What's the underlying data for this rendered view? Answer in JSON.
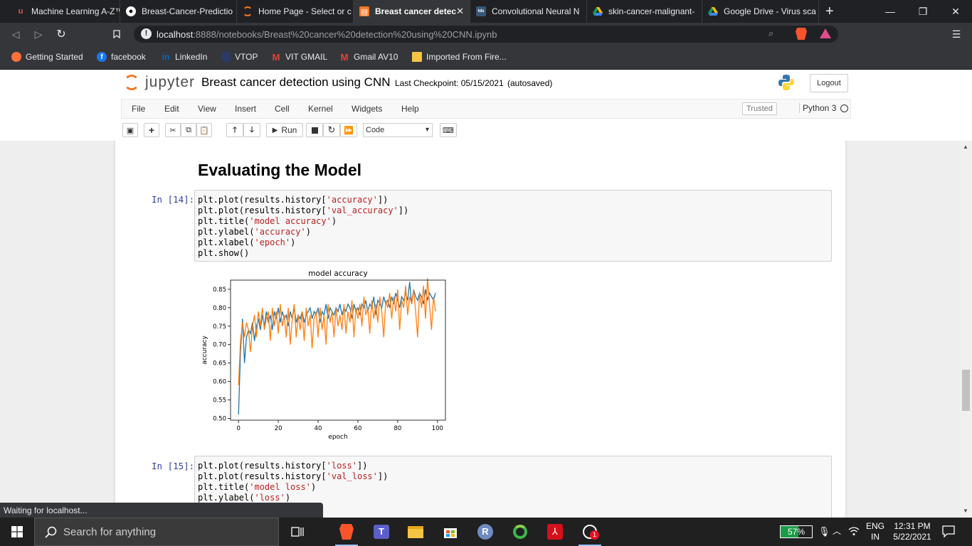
{
  "browser": {
    "tabs": [
      {
        "title": "Machine Learning A-Z™",
        "icon": "udemy-icon",
        "active": false
      },
      {
        "title": "Breast-Cancer-Predictio",
        "icon": "github-icon",
        "active": false
      },
      {
        "title": "Home Page - Select or c",
        "icon": "jupyter-icon",
        "active": false
      },
      {
        "title": "Breast cancer detec",
        "icon": "notebook-icon",
        "active": true
      },
      {
        "title": "Convolutional Neural N",
        "icon": "tds-icon",
        "active": false
      },
      {
        "title": "skin-cancer-malignant-",
        "icon": "drive-icon",
        "active": false
      },
      {
        "title": "Google Drive - Virus sca",
        "icon": "drive-icon",
        "active": false
      }
    ],
    "url_host": "localhost",
    "url_rest": ":8888/notebooks/Breast%20cancer%20detection%20using%20CNN.ipynb",
    "bookmarks": [
      {
        "label": "Getting Started",
        "icon": "firefox-icon"
      },
      {
        "label": "facebook",
        "icon": "facebook-icon"
      },
      {
        "label": "LinkedIn",
        "icon": "linkedin-icon"
      },
      {
        "label": "VTOP",
        "icon": "vtop-icon"
      },
      {
        "label": "VIT GMAIL",
        "icon": "gmail-icon"
      },
      {
        "label": "Gmail AV10",
        "icon": "gmail-icon"
      },
      {
        "label": "Imported From Fire...",
        "icon": "folder-icon"
      }
    ],
    "status_text": "Waiting for localhost..."
  },
  "jupyter": {
    "logo_text": "jupyter",
    "notebook_title": "Breast cancer detection using CNN",
    "checkpoint": "Last Checkpoint: 05/15/2021",
    "autosaved": "(autosaved)",
    "logout_label": "Logout",
    "menus": [
      "File",
      "Edit",
      "View",
      "Insert",
      "Cell",
      "Kernel",
      "Widgets",
      "Help"
    ],
    "trusted_label": "Trusted",
    "kernel_name": "Python 3",
    "run_label": "Run",
    "cell_type": "Code"
  },
  "notebook": {
    "heading": "Evaluating the Model",
    "cell14": {
      "prompt": "In [14]:",
      "lines": [
        {
          "pre": "plt.plot(results.history[",
          "str": "'accuracy'",
          "post": "])"
        },
        {
          "pre": "plt.plot(results.history[",
          "str": "'val_accuracy'",
          "post": "])"
        },
        {
          "pre": "plt.title(",
          "str": "'model accuracy'",
          "post": ")"
        },
        {
          "pre": "plt.ylabel(",
          "str": "'accuracy'",
          "post": ")"
        },
        {
          "pre": "plt.xlabel(",
          "str": "'epoch'",
          "post": ")"
        },
        {
          "pre": "plt.show()",
          "str": "",
          "post": ""
        }
      ]
    },
    "cell15": {
      "prompt": "In [15]:",
      "lines": [
        {
          "pre": "plt.plot(results.history[",
          "str": "'loss'",
          "post": "])"
        },
        {
          "pre": "plt.plot(results.history[",
          "str": "'val_loss'",
          "post": "])"
        },
        {
          "pre": "plt.title(",
          "str": "'model loss'",
          "post": ")"
        },
        {
          "pre": "plt.ylabel(",
          "str": "'loss'",
          "post": ")"
        }
      ]
    }
  },
  "chart_data": {
    "type": "line",
    "title": "model accuracy",
    "xlabel": "epoch",
    "ylabel": "accuracy",
    "xlim": [
      -4,
      104
    ],
    "ylim": [
      0.495,
      0.875
    ],
    "xticks": [
      0,
      20,
      40,
      60,
      80,
      100
    ],
    "yticks": [
      0.5,
      0.55,
      0.6,
      0.65,
      0.7,
      0.75,
      0.8,
      0.85
    ],
    "grid": false,
    "series": [
      {
        "color": "#1f77b4",
        "x": [
          0,
          1,
          2,
          3,
          4,
          5,
          6,
          7,
          8,
          9,
          10,
          11,
          12,
          13,
          14,
          15,
          16,
          17,
          18,
          19,
          20,
          21,
          22,
          23,
          24,
          25,
          26,
          27,
          28,
          29,
          30,
          31,
          32,
          33,
          34,
          35,
          36,
          37,
          38,
          39,
          40,
          41,
          42,
          43,
          44,
          45,
          46,
          47,
          48,
          49,
          50,
          51,
          52,
          53,
          54,
          55,
          56,
          57,
          58,
          59,
          60,
          61,
          62,
          63,
          64,
          65,
          66,
          67,
          68,
          69,
          70,
          71,
          72,
          73,
          74,
          75,
          76,
          77,
          78,
          79,
          80,
          81,
          82,
          83,
          84,
          85,
          86,
          87,
          88,
          89,
          90,
          91,
          92,
          93,
          94,
          95,
          96,
          97,
          98,
          99
        ],
        "values": [
          0.51,
          0.68,
          0.77,
          0.65,
          0.72,
          0.74,
          0.73,
          0.76,
          0.71,
          0.75,
          0.77,
          0.74,
          0.78,
          0.75,
          0.79,
          0.76,
          0.78,
          0.74,
          0.79,
          0.77,
          0.8,
          0.76,
          0.79,
          0.77,
          0.78,
          0.75,
          0.79,
          0.77,
          0.8,
          0.76,
          0.78,
          0.77,
          0.79,
          0.76,
          0.78,
          0.79,
          0.8,
          0.77,
          0.79,
          0.78,
          0.8,
          0.76,
          0.79,
          0.78,
          0.81,
          0.77,
          0.8,
          0.79,
          0.78,
          0.8,
          0.79,
          0.81,
          0.78,
          0.8,
          0.79,
          0.81,
          0.8,
          0.77,
          0.81,
          0.79,
          0.8,
          0.78,
          0.81,
          0.8,
          0.82,
          0.79,
          0.81,
          0.8,
          0.83,
          0.78,
          0.82,
          0.81,
          0.8,
          0.83,
          0.81,
          0.82,
          0.8,
          0.83,
          0.81,
          0.84,
          0.82,
          0.8,
          0.83,
          0.82,
          0.84,
          0.82,
          0.87,
          0.81,
          0.85,
          0.83,
          0.82,
          0.84,
          0.83,
          0.81,
          0.85,
          0.82,
          0.84,
          0.83,
          0.82,
          0.84
        ]
      },
      {
        "color": "#ff7f0e",
        "x": [
          0,
          1,
          2,
          3,
          4,
          5,
          6,
          7,
          8,
          9,
          10,
          11,
          12,
          13,
          14,
          15,
          16,
          17,
          18,
          19,
          20,
          21,
          22,
          23,
          24,
          25,
          26,
          27,
          28,
          29,
          30,
          31,
          32,
          33,
          34,
          35,
          36,
          37,
          38,
          39,
          40,
          41,
          42,
          43,
          44,
          45,
          46,
          47,
          48,
          49,
          50,
          51,
          52,
          53,
          54,
          55,
          56,
          57,
          58,
          59,
          60,
          61,
          62,
          63,
          64,
          65,
          66,
          67,
          68,
          69,
          70,
          71,
          72,
          73,
          74,
          75,
          76,
          77,
          78,
          79,
          80,
          81,
          82,
          83,
          84,
          85,
          86,
          87,
          88,
          89,
          90,
          91,
          92,
          93,
          94,
          95,
          96,
          97,
          98,
          99
        ],
        "values": [
          0.59,
          0.71,
          0.76,
          0.72,
          0.76,
          0.74,
          0.68,
          0.75,
          0.78,
          0.72,
          0.79,
          0.75,
          0.8,
          0.74,
          0.77,
          0.79,
          0.71,
          0.8,
          0.75,
          0.79,
          0.73,
          0.81,
          0.75,
          0.78,
          0.72,
          0.8,
          0.7,
          0.77,
          0.81,
          0.72,
          0.78,
          0.74,
          0.79,
          0.71,
          0.8,
          0.75,
          0.78,
          0.69,
          0.77,
          0.79,
          0.72,
          0.8,
          0.74,
          0.78,
          0.7,
          0.81,
          0.76,
          0.79,
          0.72,
          0.8,
          0.75,
          0.78,
          0.74,
          0.81,
          0.73,
          0.79,
          0.76,
          0.82,
          0.72,
          0.8,
          0.77,
          0.81,
          0.75,
          0.83,
          0.78,
          0.8,
          0.73,
          0.82,
          0.77,
          0.81,
          0.76,
          0.83,
          0.79,
          0.72,
          0.82,
          0.8,
          0.84,
          0.77,
          0.83,
          0.79,
          0.85,
          0.74,
          0.82,
          0.8,
          0.86,
          0.78,
          0.83,
          0.81,
          0.85,
          0.79,
          0.72,
          0.84,
          0.8,
          0.86,
          0.77,
          0.88,
          0.81,
          0.74,
          0.83,
          0.79
        ]
      }
    ]
  },
  "taskbar": {
    "search_placeholder": "Search for anything",
    "battery_percent": 57,
    "battery_label": "57%",
    "lang_top": "ENG",
    "lang_bottom": "IN",
    "time": "12:31 PM",
    "date": "5/22/2021",
    "whatsapp_badge": "1"
  },
  "colors": {
    "jupyter_orange": "#f37626",
    "tab_active": "#35363a",
    "prompt_blue": "#303f9f",
    "string_red": "#ba2121"
  }
}
